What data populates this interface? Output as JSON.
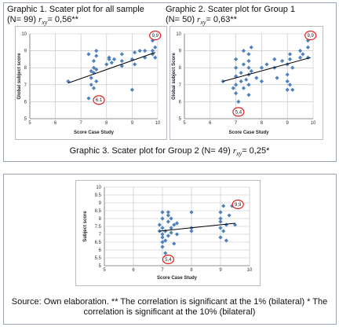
{
  "panel1": {
    "title": "Graphic 1. Scater plot for all sample",
    "stats_prefix": "(N= 99) ",
    "r_symbol": "rxy",
    "stats_value": "= 0,56**"
  },
  "panel2": {
    "title": "Graphic 2. Scater plot for Group 1",
    "stats_prefix": "(N= 50) ",
    "r_symbol": "rxy",
    "stats_value": "= 0,63**"
  },
  "panel3_heading": {
    "text": "Graphic 3. Scater plot for Group 2 (N= 49) ",
    "r_symbol": "rxy",
    "stats_value": "= 0,25*"
  },
  "source_note": "Source: Own elaboration. ** The correlation is significant at the 1% (bilateral) * The correlation is significant at the 10% (bilateral)",
  "colors": {
    "point": "#4f81bd",
    "trend": "#000000",
    "circle": "#e02020",
    "grid": "#bfbfbf",
    "frame": "#9aa4b4"
  },
  "chart_data": [
    {
      "type": "scatter",
      "title": "",
      "xlabel": "Score Case Study",
      "ylabel": "Global subject score",
      "xlim": [
        5,
        10
      ],
      "ylim": [
        5,
        10
      ],
      "xticks": [
        "5",
        "6",
        "7",
        "8",
        "9",
        "10"
      ],
      "yticks": [
        "5",
        "6",
        "7",
        "8",
        "9",
        "10"
      ],
      "grid": true,
      "points": [
        [
          6.5,
          7.2
        ],
        [
          7.3,
          6.2
        ],
        [
          7.4,
          7.0
        ],
        [
          7.4,
          7.4
        ],
        [
          7.5,
          7.7
        ],
        [
          7.5,
          8.0
        ],
        [
          7.5,
          8.4
        ],
        [
          7.6,
          8.7
        ],
        [
          7.6,
          9.0
        ],
        [
          7.6,
          7.2
        ],
        [
          7.5,
          6.8
        ],
        [
          7.6,
          7.9
        ],
        [
          8.0,
          8.2
        ],
        [
          8.1,
          8.5
        ],
        [
          8.1,
          8.6
        ],
        [
          8.2,
          8.3
        ],
        [
          8.3,
          8.5
        ],
        [
          8.6,
          8.4
        ],
        [
          8.6,
          8.8
        ],
        [
          8.6,
          8.1
        ],
        [
          9.0,
          6.7
        ],
        [
          9.0,
          8.5
        ],
        [
          9.1,
          8.9
        ],
        [
          9.1,
          8.2
        ],
        [
          9.3,
          9.0
        ],
        [
          9.5,
          8.6
        ],
        [
          9.5,
          9.0
        ],
        [
          9.8,
          8.8
        ],
        [
          9.8,
          9.0
        ],
        [
          9.9,
          9.2
        ],
        [
          9.9,
          8.6
        ],
        [
          9.8,
          9.6
        ],
        [
          7.3,
          8.8
        ],
        [
          7.4,
          7.8
        ]
      ],
      "trendline": {
        "x": [
          6.5,
          9.9
        ],
        "y": [
          7.1,
          8.9
        ]
      },
      "annotations": [
        {
          "label": "9,9",
          "x": 9.9,
          "y": 9.9
        },
        {
          "label": "6,1",
          "x": 7.7,
          "y": 6.1
        }
      ]
    },
    {
      "type": "scatter",
      "title": "",
      "xlabel": "Score Case Study",
      "ylabel": "Global subject Score",
      "xlim": [
        5,
        10
      ],
      "ylim": [
        5,
        10
      ],
      "xticks": [
        "5",
        "6",
        "7",
        "8",
        "9",
        "10"
      ],
      "yticks": [
        "5",
        "6",
        "7",
        "8",
        "9",
        "10"
      ],
      "grid": true,
      "points": [
        [
          6.5,
          7.2
        ],
        [
          6.9,
          6.8
        ],
        [
          7.0,
          6.5
        ],
        [
          7.0,
          7.0
        ],
        [
          7.0,
          7.5
        ],
        [
          7.0,
          8.0
        ],
        [
          7.0,
          8.5
        ],
        [
          7.1,
          5.4
        ],
        [
          7.1,
          6.0
        ],
        [
          7.2,
          7.2
        ],
        [
          7.2,
          7.7
        ],
        [
          7.3,
          6.8
        ],
        [
          7.3,
          8.2
        ],
        [
          7.3,
          9.0
        ],
        [
          7.4,
          7.3
        ],
        [
          7.5,
          6.4
        ],
        [
          7.5,
          7.0
        ],
        [
          7.5,
          7.6
        ],
        [
          7.5,
          8.0
        ],
        [
          7.5,
          8.4
        ],
        [
          7.5,
          8.8
        ],
        [
          7.6,
          7.8
        ],
        [
          7.6,
          9.2
        ],
        [
          7.8,
          7.4
        ],
        [
          8.0,
          8.0
        ],
        [
          8.0,
          7.2
        ],
        [
          8.2,
          8.2
        ],
        [
          8.5,
          8.0
        ],
        [
          8.5,
          8.5
        ],
        [
          8.6,
          7.4
        ],
        [
          8.8,
          8.4
        ],
        [
          9.0,
          6.7
        ],
        [
          9.0,
          7.2
        ],
        [
          9.0,
          7.6
        ],
        [
          9.0,
          8.2
        ],
        [
          9.1,
          8.5
        ],
        [
          9.1,
          8.8
        ],
        [
          9.1,
          7.0
        ],
        [
          9.2,
          6.7
        ],
        [
          9.2,
          8.0
        ],
        [
          9.5,
          8.6
        ],
        [
          9.5,
          9.0
        ],
        [
          9.6,
          8.8
        ],
        [
          9.8,
          8.6
        ],
        [
          9.8,
          9.2
        ],
        [
          9.8,
          9.6
        ]
      ],
      "trendline": {
        "x": [
          6.5,
          9.9
        ],
        "y": [
          7.2,
          8.6
        ]
      },
      "annotations": [
        {
          "label": "9,9",
          "x": 9.9,
          "y": 9.9
        },
        {
          "label": "5,4",
          "x": 7.1,
          "y": 5.4
        }
      ]
    },
    {
      "type": "scatter",
      "title": "",
      "xlabel": "Score Case Study",
      "ylabel": "Subject score",
      "xlim": [
        5,
        10
      ],
      "ylim": [
        5,
        10
      ],
      "xticks": [
        "5",
        "6",
        "7",
        "8",
        "9",
        "10"
      ],
      "yticks": [
        "5",
        "5.5",
        "6",
        "6.5",
        "7",
        "7.5",
        "8",
        "8.5",
        "9",
        "9.5",
        "10"
      ],
      "grid": true,
      "points": [
        [
          6.9,
          7.2
        ],
        [
          6.9,
          7.6
        ],
        [
          7.0,
          6.2
        ],
        [
          7.0,
          6.5
        ],
        [
          7.0,
          6.8
        ],
        [
          7.0,
          7.0
        ],
        [
          7.0,
          7.4
        ],
        [
          7.0,
          8.0
        ],
        [
          7.0,
          8.4
        ],
        [
          7.1,
          5.8
        ],
        [
          7.1,
          6.6
        ],
        [
          7.1,
          7.2
        ],
        [
          7.2,
          7.8
        ],
        [
          7.2,
          8.2
        ],
        [
          7.2,
          8.4
        ],
        [
          7.2,
          5.4
        ],
        [
          7.2,
          6.9
        ],
        [
          7.3,
          7.4
        ],
        [
          7.3,
          8.0
        ],
        [
          7.3,
          7.1
        ],
        [
          7.4,
          7.6
        ],
        [
          7.4,
          6.4
        ],
        [
          7.5,
          7.0
        ],
        [
          7.5,
          7.7
        ],
        [
          8.0,
          7.2
        ],
        [
          8.0,
          7.4
        ],
        [
          8.0,
          8.4
        ],
        [
          9.0,
          6.8
        ],
        [
          9.0,
          7.4
        ],
        [
          9.0,
          7.8
        ],
        [
          9.0,
          8.0
        ],
        [
          9.0,
          8.4
        ],
        [
          9.1,
          8.8
        ],
        [
          9.1,
          7.2
        ],
        [
          9.2,
          6.6
        ],
        [
          9.2,
          7.6
        ],
        [
          9.3,
          8.2
        ],
        [
          9.4,
          8.8
        ],
        [
          9.5,
          7.6
        ]
      ],
      "trendline": {
        "x": [
          6.9,
          9.5
        ],
        "y": [
          7.2,
          7.7
        ]
      },
      "annotations": [
        {
          "label": "9,9",
          "x": 9.6,
          "y": 8.9
        },
        {
          "label": "5,4",
          "x": 7.2,
          "y": 5.4
        }
      ]
    }
  ]
}
